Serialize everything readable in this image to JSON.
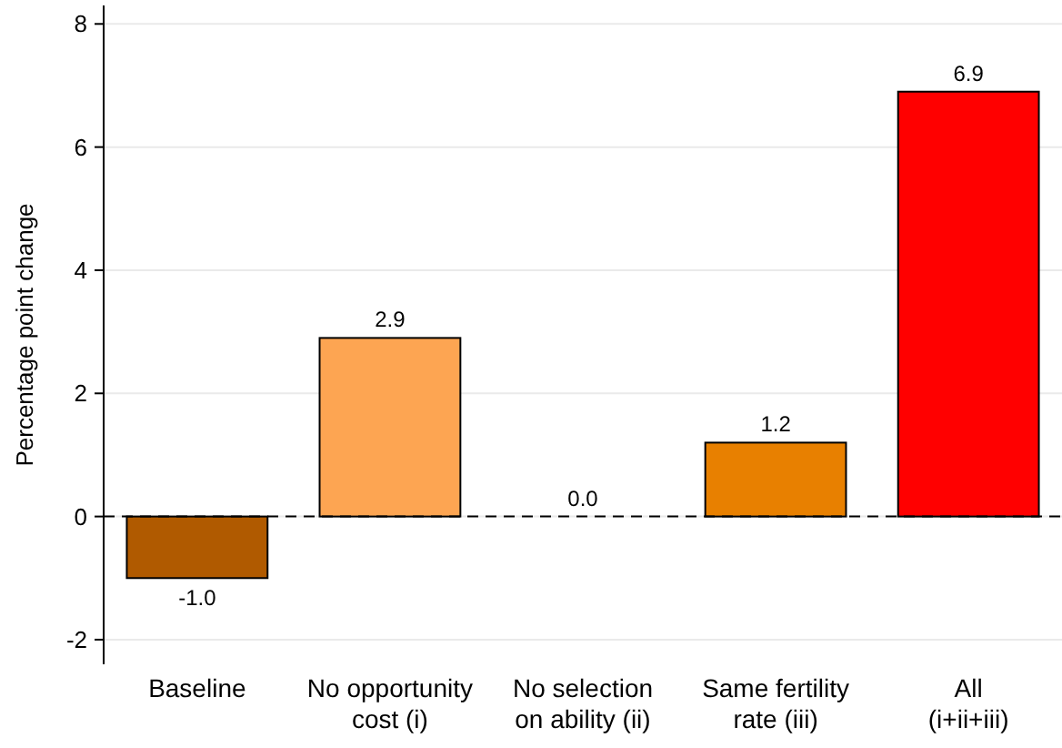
{
  "chart_data": {
    "type": "bar",
    "ylabel": "Percentage point change",
    "categories": [
      "Baseline",
      "No opportunity\ncost (i)",
      "No selection\non ability (ii)",
      "Same fertility\nrate (iii)",
      "All\n(i+ii+iii)"
    ],
    "values": [
      -1.0,
      2.9,
      0.0,
      1.2,
      6.9
    ],
    "colors": [
      "#b05a00",
      "#fda552",
      "#fdbe6f",
      "#e88000",
      "#ff0000"
    ],
    "value_labels": [
      "-1.0",
      "2.9",
      "0.0",
      "1.2",
      "6.9"
    ],
    "ylim": [
      -2.4,
      8.3
    ],
    "yticks": [
      -2,
      0,
      2,
      4,
      6,
      8
    ],
    "grid": "y",
    "ref_lines": [
      {
        "axis": "y",
        "value": 0,
        "color": "#000000",
        "line_style": "dashed"
      }
    ]
  }
}
